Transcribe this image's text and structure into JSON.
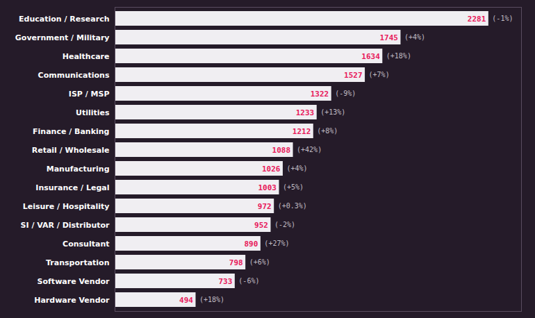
{
  "chart_data": {
    "type": "bar",
    "orientation": "horizontal",
    "categories": [
      "Education / Research",
      "Government / Military",
      "Healthcare",
      "Communications",
      "ISP / MSP",
      "Utilities",
      "Finance / Banking",
      "Retail / Wholesale",
      "Manufacturing",
      "Insurance / Legal",
      "Leisure / Hospitality",
      "SI / VAR / Distributor",
      "Consultant",
      "Transportation",
      "Software Vendor",
      "Hardware Vendor"
    ],
    "values": [
      2281,
      1745,
      1634,
      1527,
      1322,
      1233,
      1212,
      1088,
      1026,
      1003,
      972,
      952,
      890,
      798,
      733,
      494
    ],
    "changes": [
      "(-1%)",
      "(+4%)",
      "(+18%)",
      "(+7%)",
      "(-9%)",
      "(+13%)",
      "(+8%)",
      "(+42%)",
      "(+4%)",
      "(+5%)",
      "(+0.3%)",
      "(-2%)",
      "(+27%)",
      "(+6%)",
      "(-6%)",
      "(+18%)"
    ],
    "color": "#f0eef2",
    "xlim": [
      0,
      2481
    ],
    "data_labels": true,
    "tick_labels": "y"
  }
}
